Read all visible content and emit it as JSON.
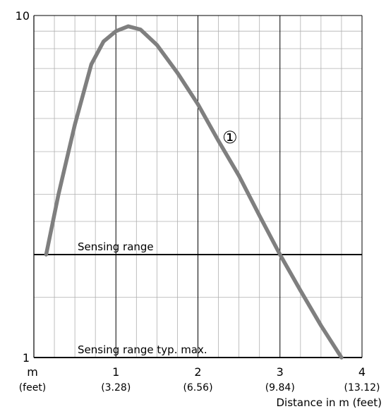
{
  "chart_data": {
    "type": "line",
    "title": "",
    "xlabel": "Distance in m (feet)",
    "ylabel": "",
    "x_unit_label": "m",
    "x_unit_sub_label": "(feet)",
    "xlim": [
      0,
      4
    ],
    "ylim": [
      1,
      10
    ],
    "y_scale": "log",
    "grid": true,
    "x_ticks": [
      {
        "value": 1,
        "label": "1",
        "sub": "(3.28)"
      },
      {
        "value": 2,
        "label": "2",
        "sub": "(6.56)"
      },
      {
        "value": 3,
        "label": "3",
        "sub": "(9.84)"
      },
      {
        "value": 4,
        "label": "4",
        "sub": "(13.12)"
      }
    ],
    "y_ticks": [
      {
        "value": 1,
        "label": "1"
      },
      {
        "value": 10,
        "label": "10"
      }
    ],
    "series": [
      {
        "marker": "①",
        "color": "#7f7f7f",
        "points": [
          [
            0.15,
            2.0
          ],
          [
            0.3,
            3.0
          ],
          [
            0.5,
            4.8
          ],
          [
            0.7,
            7.2
          ],
          [
            0.85,
            8.4
          ],
          [
            1.0,
            9.0
          ],
          [
            1.15,
            9.3
          ],
          [
            1.3,
            9.1
          ],
          [
            1.5,
            8.2
          ],
          [
            1.75,
            6.8
          ],
          [
            2.0,
            5.5
          ],
          [
            2.25,
            4.3
          ],
          [
            2.5,
            3.4
          ],
          [
            2.75,
            2.6
          ],
          [
            3.0,
            2.0
          ],
          [
            3.25,
            1.57
          ],
          [
            3.5,
            1.24
          ],
          [
            3.75,
            1.0
          ]
        ]
      }
    ],
    "reference_lines": [
      {
        "label": "Sensing range",
        "y": 2.0
      },
      {
        "label": "Sensing range typ. max.",
        "y": 1.0
      }
    ]
  }
}
